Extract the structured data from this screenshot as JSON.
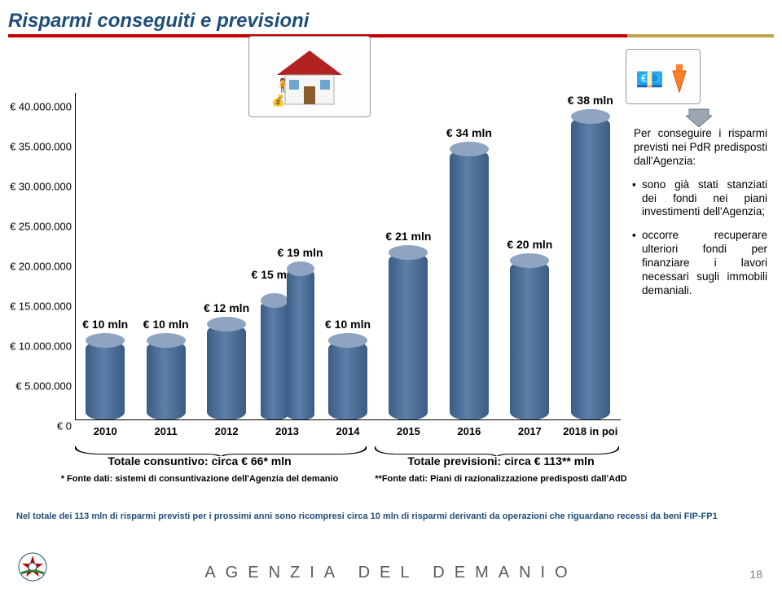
{
  "title": "Risparmi conseguiti e previsioni",
  "colors": {
    "title_text": "#1f4e79",
    "underline_red": "#c00000",
    "underline_gold": "#bfa24a",
    "bar_side": "#3b5c84",
    "bar_side_light": "#5d7ea8",
    "bar_cap": "#8ea4c1",
    "grid": "#e0e0e0",
    "axis": "#000000",
    "sidebar_bg": "#ffffff",
    "footnote": "#1f4e79",
    "footer_text": "#5b5b5b"
  },
  "chart": {
    "type": "bar-3d-cylinder",
    "y_ticks": [
      0,
      5000000,
      10000000,
      15000000,
      20000000,
      25000000,
      30000000,
      35000000,
      40000000
    ],
    "y_labels": [
      "€ 0",
      "€ 5.000.000",
      "€ 10.000.000",
      "€ 15.000.000",
      "€ 20.000.000",
      "€ 25.000.000",
      "€ 30.000.000",
      "€ 35.000.000",
      "€ 40.000.000"
    ],
    "y_max": 41000000,
    "x_labels": [
      "2010",
      "2011",
      "2012",
      "2013",
      "2014",
      "2015",
      "2016",
      "2017",
      "2018 in poi"
    ],
    "bars": [
      {
        "x": 0,
        "group": null,
        "value": 10000000,
        "label": "€ 10 mln"
      },
      {
        "x": 1,
        "group": null,
        "value": 10000000,
        "label": "€ 10 mln"
      },
      {
        "x": 2,
        "group": null,
        "value": 12000000,
        "label": "€ 12 mln"
      },
      {
        "x": 3,
        "group": "left",
        "value": 15000000,
        "label": "€ 15 mln"
      },
      {
        "x": 3,
        "group": "right",
        "value": 19000000,
        "label": "€ 19 mln"
      },
      {
        "x": 4,
        "group": null,
        "value": 10000000,
        "label": "€ 10 mln"
      },
      {
        "x": 5,
        "group": null,
        "value": 21000000,
        "label": "€ 21 mln"
      },
      {
        "x": 6,
        "group": null,
        "value": 34000000,
        "label": "€ 34 mln"
      },
      {
        "x": 7,
        "group": null,
        "value": 20000000,
        "label": "€ 20 mln"
      },
      {
        "x": 8,
        "group": null,
        "value": 38000000,
        "label": "€ 38 mln"
      }
    ],
    "grouping_divider_between_x": [
      4,
      5
    ]
  },
  "summary": {
    "left_total": "Totale consuntivo: circa € 66* mln",
    "right_total": "Totale previsioni: circa € 113** mln",
    "left_source": "* Fonte dati: sistemi di consuntivazione dell'Agenzia del demanio",
    "right_source": "**Fonte dati: Piani di razionalizzazione predisposti dall'AdD"
  },
  "sidebar": {
    "para1": "Per conseguire i risparmi previsti nei PdR predisposti dall'Agenzia:",
    "bullet1": "sono già stati stanziati dei fondi nei piani investimenti dell'Agenzia;",
    "bullet2": "occorre recuperare ulteriori fondi per finanziare i lavori necessari sugli immobili demaniali."
  },
  "footnote": "Nel totale dei 113 mln di risparmi previsti per i prossimi anni sono ricompresi circa 10 mln di risparmi derivanti da operazioni che riguardano recessi da beni FIP-FP1",
  "footer": {
    "agency": "AGENZIA DEL DEMANIO",
    "page": "18"
  }
}
